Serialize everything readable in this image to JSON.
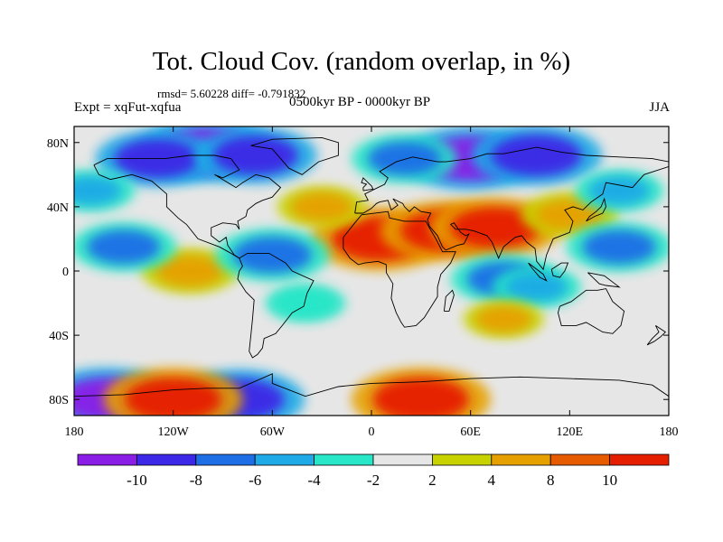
{
  "header": {
    "title": "Tot. Cloud Cov. (random overlap, in %)",
    "stats": "rmsd= 5.60228 diff= -0.791832",
    "expt": "Expt = xqFut-xqfua",
    "period": "0500kyr BP - 0000kyr BP",
    "season": "JJA"
  },
  "chart_data": {
    "type": "heatmap",
    "title": "Tot. Cloud Cov. (random overlap, in %)",
    "subtitle": "0500kyr BP - 0000kyr BP",
    "annotations": [
      "rmsd= 5.60228 diff= -0.791832",
      "Expt = xqFut-xqfua",
      "JJA"
    ],
    "xlim": [
      -180,
      180
    ],
    "ylim": [
      -90,
      90
    ],
    "x_ticks": [
      {
        "value": -180,
        "label": "180"
      },
      {
        "value": -120,
        "label": "120W"
      },
      {
        "value": -60,
        "label": "60W"
      },
      {
        "value": 0,
        "label": "0"
      },
      {
        "value": 60,
        "label": "60E"
      },
      {
        "value": 120,
        "label": "120E"
      },
      {
        "value": 180,
        "label": "180"
      }
    ],
    "y_ticks": [
      {
        "value": 80,
        "label": "80N"
      },
      {
        "value": 40,
        "label": "40N"
      },
      {
        "value": 0,
        "label": "0"
      },
      {
        "value": -40,
        "label": "40S"
      },
      {
        "value": -80,
        "label": "80S"
      }
    ],
    "colorbar": {
      "bins": [
        {
          "range": "< -10",
          "color": "#8a1ee6"
        },
        {
          "range": "-10 to -8",
          "color": "#3c28e6"
        },
        {
          "range": "-8 to -6",
          "color": "#1e6ee6"
        },
        {
          "range": "-6 to -4",
          "color": "#1eaae6"
        },
        {
          "range": "-4 to -2",
          "color": "#28e6c8"
        },
        {
          "range": "-2 to 2",
          "color": "#e6e6e6"
        },
        {
          "range": "2 to 4",
          "color": "#c8d200"
        },
        {
          "range": "4 to 8",
          "color": "#e6a000"
        },
        {
          "range": "8 to 10",
          "color": "#e65a00"
        },
        {
          "range": "> 10",
          "color": "#e61e00"
        }
      ],
      "labels": [
        "-10",
        "-8",
        "-6",
        "-4",
        "-2",
        "2",
        "4",
        "8",
        "10"
      ]
    },
    "regions": [
      {
        "lon": -100,
        "lat": 75,
        "value": -11
      },
      {
        "lon": -130,
        "lat": 70,
        "value": -9
      },
      {
        "lon": -70,
        "lat": 72,
        "value": -9
      },
      {
        "lon": 60,
        "lat": 70,
        "value": -11
      },
      {
        "lon": 100,
        "lat": 72,
        "value": -10
      },
      {
        "lon": 20,
        "lat": 70,
        "value": -7
      },
      {
        "lon": 5,
        "lat": 20,
        "value": 11
      },
      {
        "lon": 45,
        "lat": 25,
        "value": 10
      },
      {
        "lon": 75,
        "lat": 27,
        "value": 10
      },
      {
        "lon": 120,
        "lat": 35,
        "value": 6
      },
      {
        "lon": -30,
        "lat": 40,
        "value": 5
      },
      {
        "lon": -110,
        "lat": 0,
        "value": 6
      },
      {
        "lon": -150,
        "lat": 15,
        "value": -7
      },
      {
        "lon": -60,
        "lat": 10,
        "value": -8
      },
      {
        "lon": 80,
        "lat": -5,
        "value": -7
      },
      {
        "lon": 150,
        "lat": 15,
        "value": -7
      },
      {
        "lon": 100,
        "lat": -10,
        "value": -5
      },
      {
        "lon": -40,
        "lat": -20,
        "value": -4
      },
      {
        "lon": -160,
        "lat": -80,
        "value": -11
      },
      {
        "lon": -80,
        "lat": -80,
        "value": -10
      },
      {
        "lon": -120,
        "lat": -80,
        "value": 11
      },
      {
        "lon": 30,
        "lat": -80,
        "value": 11
      },
      {
        "lon": 80,
        "lat": -30,
        "value": 4
      },
      {
        "lon": -170,
        "lat": 50,
        "value": -5
      },
      {
        "lon": 150,
        "lat": 50,
        "value": -5
      }
    ]
  }
}
